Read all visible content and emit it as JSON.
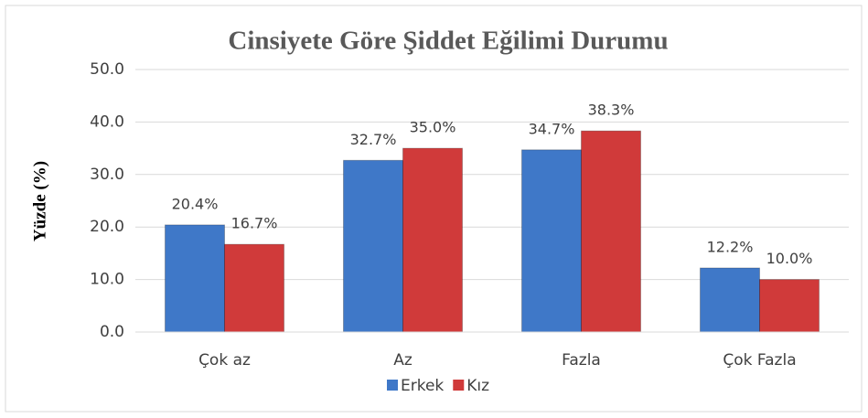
{
  "chart_data": {
    "type": "bar",
    "title": "Cinsiyete Göre Şiddet Eğilimi Durumu",
    "y_label": "Yüzde (%)",
    "categories": [
      "Çok az",
      "Az",
      "Fazla",
      "Çok Fazla"
    ],
    "series": [
      {
        "name": "Erkek",
        "color": "#3f78c8",
        "values": [
          20.4,
          32.7,
          34.7,
          12.2
        ],
        "value_labels": [
          "20.4%",
          "32.7%",
          "34.7%",
          "12.2%"
        ]
      },
      {
        "name": "Kız",
        "color": "#d03a3a",
        "values": [
          16.7,
          35.0,
          38.3,
          10.0
        ],
        "value_labels": [
          "16.7%",
          "35.0%",
          "38.3%",
          "10.0%"
        ]
      }
    ],
    "ylim": [
      0,
      50
    ],
    "yticks": [
      {
        "value": 0,
        "label": "0.0"
      },
      {
        "value": 10,
        "label": "10.0"
      },
      {
        "value": 20,
        "label": "20.0"
      },
      {
        "value": 30,
        "label": "30.0"
      },
      {
        "value": 40,
        "label": "40.0"
      },
      {
        "value": 50,
        "label": "50.0"
      }
    ],
    "grid": true,
    "legend": "bottom"
  }
}
